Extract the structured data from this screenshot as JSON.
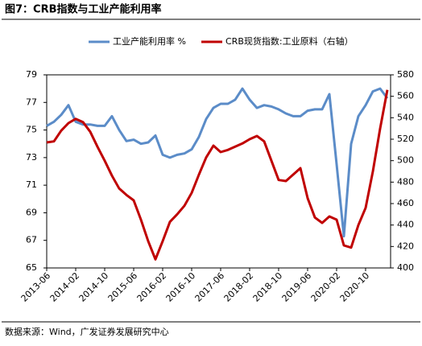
{
  "title": "图7：CRB指数与工业产能利用率",
  "source": "数据来源：Wind，广发证券发展研究中心",
  "chart_data": {
    "type": "line",
    "categories": [
      "2013-06",
      null,
      null,
      null,
      "2014-02",
      null,
      null,
      null,
      "2014-10",
      null,
      null,
      null,
      "2015-06",
      null,
      null,
      null,
      "2016-02",
      null,
      null,
      null,
      "2016-10",
      null,
      null,
      null,
      "2017-06",
      null,
      null,
      null,
      "2018-02",
      null,
      null,
      null,
      "2018-10",
      null,
      null,
      null,
      "2019-06",
      null,
      null,
      null,
      "2020-02",
      null,
      null,
      null,
      "2020-10",
      null,
      null,
      null
    ],
    "series": [
      {
        "name": "工业产能利用率 %",
        "color": "#5b8cc8",
        "axis": "y",
        "values": [
          75.3,
          75.6,
          76.1,
          76.8,
          75.6,
          75.4,
          75.4,
          75.3,
          75.3,
          76.0,
          75.0,
          74.2,
          74.3,
          74.0,
          74.1,
          74.6,
          73.2,
          73.0,
          73.2,
          73.3,
          73.6,
          74.5,
          75.8,
          76.6,
          76.9,
          76.9,
          77.2,
          78.0,
          77.2,
          76.6,
          76.8,
          76.7,
          76.5,
          76.2,
          76.0,
          76.0,
          76.4,
          76.5,
          76.5,
          77.6,
          72.5,
          67.3,
          74.0,
          76.0,
          76.8,
          77.8,
          78.0,
          77.3
        ]
      },
      {
        "name": "CRB现货指数:工业原料（右轴）",
        "color": "#c00000",
        "axis": "y2",
        "values": [
          517,
          518,
          528,
          535,
          539,
          536,
          527,
          513,
          500,
          486,
          474,
          468,
          463,
          445,
          425,
          408,
          425,
          443,
          450,
          458,
          470,
          487,
          503,
          514,
          508,
          510,
          513,
          516,
          520,
          523,
          518,
          500,
          482,
          481,
          487,
          493,
          465,
          447,
          442,
          448,
          445,
          421,
          419,
          440,
          456,
          490,
          530,
          566
        ]
      }
    ],
    "ylim": [
      65,
      79
    ],
    "yticks": [
      65,
      67,
      69,
      71,
      73,
      75,
      77,
      79
    ],
    "y2lim": [
      400,
      580
    ],
    "y2ticks": [
      400,
      420,
      440,
      460,
      480,
      500,
      520,
      540,
      560,
      580
    ],
    "legend": "top"
  }
}
